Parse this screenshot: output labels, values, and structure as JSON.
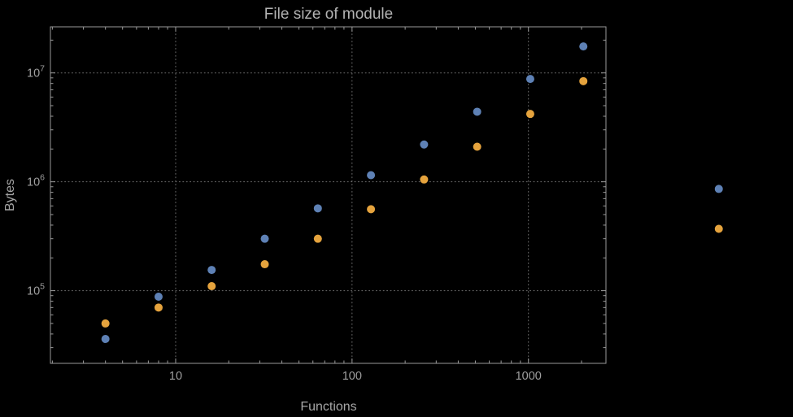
{
  "colors": {
    "background": "#000000",
    "frame": "#9a9a9a",
    "grid": "#6f6f6f",
    "title_text": "#b3b3b3",
    "label_text": "#a6a6a6",
    "tick_text": "#9f9f9f",
    "series_blue": "#5e81b5",
    "series_orange": "#e5a33d"
  },
  "chart_data": {
    "type": "scatter",
    "title": "File size of module",
    "xlabel": "Functions",
    "ylabel": "Bytes",
    "xscale": "log",
    "yscale": "log",
    "xlim": [
      1.95,
      2750
    ],
    "ylim": [
      21500,
      26500000
    ],
    "grid": "dotted at major ticks",
    "legend_position": "none",
    "x_ticks": [
      10,
      100,
      1000
    ],
    "x_tick_labels": [
      "10",
      "100",
      "1000"
    ],
    "y_ticks": [
      100000,
      1000000,
      10000000
    ],
    "y_tick_labels": [
      {
        "base": "10",
        "exp": "5"
      },
      {
        "base": "10",
        "exp": "6"
      },
      {
        "base": "10",
        "exp": "7"
      }
    ],
    "marker": "filled-circle",
    "marker_radius": 5,
    "series": [
      {
        "name": "blue",
        "color": "#5e81b5",
        "points": [
          [
            4,
            36000
          ],
          [
            8,
            88000
          ],
          [
            16,
            155000
          ],
          [
            32,
            300000
          ],
          [
            64,
            570000
          ],
          [
            128,
            1150000
          ],
          [
            256,
            2200000
          ],
          [
            512,
            4400000
          ],
          [
            1024,
            8800000
          ],
          [
            2048,
            17500000
          ],
          [
            12000,
            860000
          ]
        ]
      },
      {
        "name": "orange",
        "color": "#e5a33d",
        "points": [
          [
            4,
            50000
          ],
          [
            8,
            70000
          ],
          [
            16,
            110000
          ],
          [
            32,
            175000
          ],
          [
            64,
            300000
          ],
          [
            128,
            560000
          ],
          [
            256,
            1050000
          ],
          [
            512,
            2100000
          ],
          [
            1024,
            4200000
          ],
          [
            2048,
            8400000
          ],
          [
            12000,
            370000
          ]
        ]
      }
    ]
  }
}
